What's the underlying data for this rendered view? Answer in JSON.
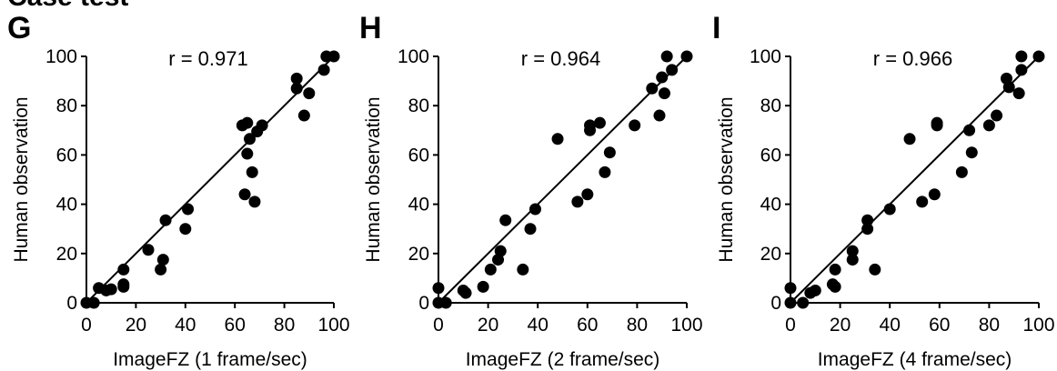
{
  "header_text": "Case test",
  "chart_data": [
    {
      "type": "scatter",
      "panel_label": "G",
      "annotation": "r = 0.971",
      "xlabel": "ImageFZ (1 frame/sec)",
      "ylabel": "Human observation",
      "xlim": [
        0,
        100
      ],
      "ylim": [
        0,
        100
      ],
      "xticks": [
        0,
        20,
        40,
        60,
        80,
        100
      ],
      "yticks": [
        0,
        20,
        40,
        60,
        80,
        100
      ],
      "grid": false,
      "fit_line": [
        [
          0,
          0
        ],
        [
          100,
          100
        ]
      ],
      "points": [
        [
          0,
          0
        ],
        [
          3,
          0
        ],
        [
          5,
          6
        ],
        [
          8,
          5
        ],
        [
          10,
          5.5
        ],
        [
          15,
          13.5
        ],
        [
          15,
          7.5
        ],
        [
          15,
          6.5
        ],
        [
          25,
          21.5
        ],
        [
          30,
          13.5
        ],
        [
          31,
          17.5
        ],
        [
          32,
          33.5
        ],
        [
          40,
          30
        ],
        [
          41,
          38
        ],
        [
          63,
          72
        ],
        [
          64,
          44
        ],
        [
          65,
          73
        ],
        [
          65,
          60.5
        ],
        [
          66,
          66.5
        ],
        [
          67,
          53
        ],
        [
          68,
          41
        ],
        [
          69,
          69.5
        ],
        [
          71,
          72
        ],
        [
          85,
          91
        ],
        [
          85,
          87
        ],
        [
          88,
          76
        ],
        [
          90,
          85
        ],
        [
          96,
          94.5
        ],
        [
          97,
          100
        ],
        [
          100,
          100
        ]
      ]
    },
    {
      "type": "scatter",
      "panel_label": "H",
      "annotation": "r = 0.964",
      "xlabel": "ImageFZ (2 frame/sec)",
      "ylabel": "Human observation",
      "xlim": [
        0,
        100
      ],
      "ylim": [
        0,
        100
      ],
      "xticks": [
        0,
        20,
        40,
        60,
        80,
        100
      ],
      "yticks": [
        0,
        20,
        40,
        60,
        80,
        100
      ],
      "grid": false,
      "fit_line": [
        [
          0,
          0
        ],
        [
          100,
          100
        ]
      ],
      "points": [
        [
          0,
          0
        ],
        [
          0,
          6
        ],
        [
          3,
          0
        ],
        [
          10,
          5
        ],
        [
          11,
          4
        ],
        [
          18,
          6.5
        ],
        [
          21,
          13.5
        ],
        [
          24,
          17.5
        ],
        [
          25,
          21
        ],
        [
          27,
          33.5
        ],
        [
          34,
          13.5
        ],
        [
          37,
          30
        ],
        [
          39,
          38
        ],
        [
          48,
          66.5
        ],
        [
          56,
          41
        ],
        [
          60,
          44
        ],
        [
          61,
          72
        ],
        [
          61,
          70
        ],
        [
          65,
          73
        ],
        [
          67,
          53
        ],
        [
          69,
          61
        ],
        [
          79,
          72
        ],
        [
          86,
          87
        ],
        [
          89,
          76
        ],
        [
          90,
          91.5
        ],
        [
          91,
          85
        ],
        [
          92,
          100
        ],
        [
          94,
          94.5
        ],
        [
          100,
          100
        ]
      ]
    },
    {
      "type": "scatter",
      "panel_label": "I",
      "annotation": "r = 0.966",
      "xlabel": "ImageFZ (4 frame/sec)",
      "ylabel": "Human observation",
      "xlim": [
        0,
        100
      ],
      "ylim": [
        0,
        100
      ],
      "xticks": [
        0,
        20,
        40,
        60,
        80,
        100
      ],
      "yticks": [
        0,
        20,
        40,
        60,
        80,
        100
      ],
      "grid": false,
      "fit_line": [
        [
          0,
          0
        ],
        [
          100,
          100
        ]
      ],
      "points": [
        [
          0,
          0
        ],
        [
          0,
          6
        ],
        [
          5,
          0
        ],
        [
          8,
          4
        ],
        [
          10,
          5
        ],
        [
          17,
          7.5
        ],
        [
          18,
          6.5
        ],
        [
          18,
          13.5
        ],
        [
          25,
          21
        ],
        [
          25,
          17.5
        ],
        [
          31,
          33.5
        ],
        [
          31,
          30
        ],
        [
          34,
          13.5
        ],
        [
          40,
          38
        ],
        [
          48,
          66.5
        ],
        [
          53,
          41
        ],
        [
          58,
          44
        ],
        [
          59,
          73
        ],
        [
          59,
          72
        ],
        [
          69,
          53
        ],
        [
          72,
          70
        ],
        [
          73,
          61
        ],
        [
          80,
          72
        ],
        [
          83,
          76
        ],
        [
          87,
          91
        ],
        [
          88,
          87.5
        ],
        [
          92,
          85
        ],
        [
          93,
          100
        ],
        [
          93,
          94.5
        ],
        [
          100,
          100
        ]
      ]
    }
  ]
}
